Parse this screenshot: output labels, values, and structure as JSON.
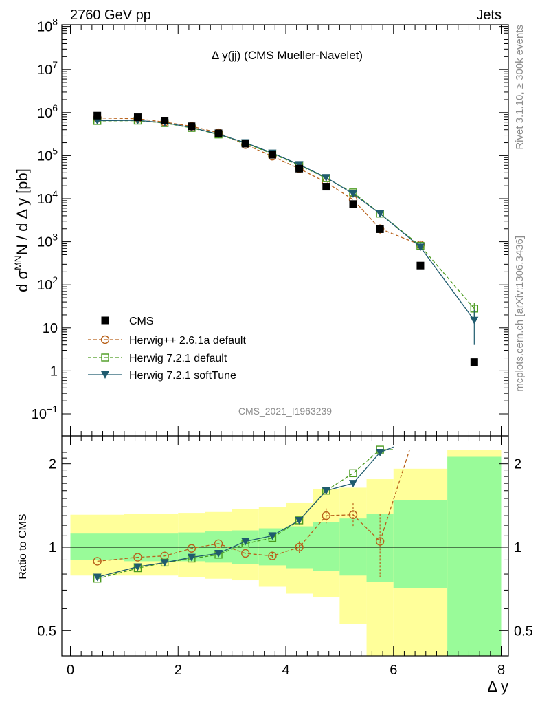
{
  "header": {
    "left": "2760 GeV pp",
    "right": "Jets"
  },
  "side_labels": {
    "rivet": "Rivet 3.1.10, ≥ 300k events",
    "mcplots": "mcplots.cern.ch [arXiv:1306.3436]"
  },
  "chart_data": [
    {
      "type": "scatter",
      "panel": "main",
      "title": "Δ y(jj) (CMS Mueller-Navelet)",
      "watermark": "CMS_2021_I1963239",
      "ylabel": "d σ^MN / d Δ y [pb]",
      "xlim": [
        -0.15,
        8.0
      ],
      "ylim_log10": [
        -0.55,
        8.0
      ],
      "log_y": true,
      "y_tick_labels": [
        "10^−1",
        "1",
        "10",
        "10^2",
        "10^3",
        "10^4",
        "10^5",
        "10^6",
        "10^7",
        "10^8"
      ],
      "legend_position": "bottom-left",
      "series": [
        {
          "name": "CMS",
          "style": "data",
          "color": "#000000",
          "x": [
            0.5,
            1.25,
            1.75,
            2.25,
            2.75,
            3.25,
            3.75,
            4.25,
            4.75,
            5.25,
            5.75,
            6.5,
            7.5
          ],
          "y": [
            850000,
            780000,
            650000,
            480000,
            330000,
            190000,
            105000,
            50000,
            19000,
            7500,
            1950,
            280,
            1.6
          ]
        },
        {
          "name": "Herwig++ 2.6.1a default",
          "style": "circle-dashed",
          "color": "#b8621b",
          "x": [
            0.5,
            1.25,
            1.75,
            2.25,
            2.75,
            3.25,
            3.75,
            4.25,
            4.75,
            5.25,
            5.75,
            6.5
          ],
          "y": [
            750000,
            720000,
            600000,
            480000,
            340000,
            180000,
            97000,
            50000,
            24000,
            9500,
            2000,
            850
          ],
          "yerr": [
            0,
            0,
            0,
            0,
            0,
            0,
            0,
            0,
            0,
            0,
            500,
            200
          ]
        },
        {
          "name": "Herwig 7.2.1 default",
          "style": "square-dashed",
          "color": "#4a9a1e",
          "x": [
            0.5,
            1.25,
            1.75,
            2.25,
            2.75,
            3.25,
            3.75,
            4.25,
            4.75,
            5.25,
            5.75,
            6.5,
            7.5
          ],
          "y": [
            640000,
            650000,
            570000,
            440000,
            310000,
            195000,
            110000,
            60000,
            30000,
            14000,
            4500,
            800,
            28
          ],
          "yerr": [
            0,
            0,
            0,
            0,
            0,
            0,
            0,
            0,
            0,
            0,
            0,
            120,
            10
          ]
        },
        {
          "name": "Herwig 7.2.1 softTune",
          "style": "triangle-solid",
          "color": "#1f5b6e",
          "x": [
            0.5,
            1.25,
            1.75,
            2.25,
            2.75,
            3.25,
            3.75,
            4.25,
            4.75,
            5.25,
            5.75,
            6.5,
            7.5
          ],
          "y": [
            650000,
            660000,
            580000,
            450000,
            315000,
            200000,
            115000,
            62000,
            31000,
            13000,
            4500,
            750,
            15
          ],
          "yerr": [
            0,
            0,
            0,
            0,
            0,
            0,
            0,
            0,
            0,
            0,
            0,
            100,
            11
          ]
        }
      ]
    },
    {
      "type": "scatter",
      "panel": "ratio",
      "ylabel": "Ratio to CMS",
      "xlabel": "Δ y",
      "xlim": [
        -0.15,
        8.0
      ],
      "ylim": [
        0.35,
        2.25
      ],
      "x_tick_labels": [
        "0",
        "2",
        "4",
        "6",
        "8"
      ],
      "y_tick_labels": [
        "0.5",
        "1",
        "2"
      ],
      "bands": [
        {
          "x0": 0.0,
          "x1": 1.0,
          "inner": [
            0.9,
            1.12
          ],
          "outer": [
            0.79,
            1.31
          ]
        },
        {
          "x0": 1.0,
          "x1": 2.0,
          "inner": [
            0.89,
            1.12
          ],
          "outer": [
            0.79,
            1.32
          ]
        },
        {
          "x0": 2.0,
          "x1": 2.5,
          "inner": [
            0.89,
            1.13
          ],
          "outer": [
            0.78,
            1.33
          ]
        },
        {
          "x0": 2.5,
          "x1": 3.0,
          "inner": [
            0.88,
            1.14
          ],
          "outer": [
            0.77,
            1.34
          ]
        },
        {
          "x0": 3.0,
          "x1": 3.5,
          "inner": [
            0.87,
            1.15
          ],
          "outer": [
            0.76,
            1.37
          ]
        },
        {
          "x0": 3.5,
          "x1": 4.0,
          "inner": [
            0.86,
            1.17
          ],
          "outer": [
            0.72,
            1.4
          ]
        },
        {
          "x0": 4.0,
          "x1": 4.5,
          "inner": [
            0.84,
            1.19
          ],
          "outer": [
            0.68,
            1.45
          ]
        },
        {
          "x0": 4.5,
          "x1": 5.0,
          "inner": [
            0.82,
            1.23
          ],
          "outer": [
            0.66,
            1.62
          ]
        },
        {
          "x0": 5.0,
          "x1": 5.5,
          "inner": [
            0.79,
            1.27
          ],
          "outer": [
            0.53,
            1.64
          ]
        },
        {
          "x0": 5.5,
          "x1": 6.0,
          "inner": [
            0.75,
            1.32
          ],
          "outer": [
            0.37,
            1.76
          ]
        },
        {
          "x0": 6.0,
          "x1": 7.0,
          "inner": [
            0.71,
            1.48
          ],
          "outer": [
            0.35,
            1.92
          ]
        },
        {
          "x0": 7.0,
          "x1": 8.0,
          "inner": [
            0.37,
            2.12
          ],
          "outer": [
            0.35,
            2.25
          ]
        }
      ],
      "series": [
        {
          "name": "Herwig++ 2.6.1a default",
          "color": "#b8621b",
          "x": [
            0.5,
            1.25,
            1.75,
            2.25,
            2.75,
            3.25,
            3.75,
            4.25,
            4.75,
            5.25,
            5.75,
            6.3
          ],
          "y": [
            0.89,
            0.92,
            0.93,
            0.99,
            1.03,
            0.95,
            0.93,
            1.0,
            1.3,
            1.31,
            1.05,
            2.25
          ],
          "yerr": [
            0,
            0,
            0,
            0,
            0,
            0,
            0.03,
            0.05,
            0.08,
            0.13,
            0.27,
            0
          ]
        },
        {
          "name": "Herwig 7.2.1 default",
          "color": "#4a9a1e",
          "x": [
            0.5,
            1.25,
            1.75,
            2.25,
            2.75,
            3.25,
            3.75,
            4.25,
            4.75,
            5.25,
            5.75,
            6.0
          ],
          "y": [
            0.77,
            0.84,
            0.88,
            0.91,
            0.94,
            1.03,
            1.08,
            1.25,
            1.6,
            1.85,
            2.25,
            2.25
          ]
        },
        {
          "name": "Herwig 7.2.1 softTune",
          "color": "#1f5b6e",
          "x": [
            0.5,
            1.25,
            1.75,
            2.25,
            2.75,
            3.25,
            3.75,
            4.25,
            4.75,
            5.25,
            5.75,
            6.0
          ],
          "y": [
            0.78,
            0.85,
            0.88,
            0.92,
            0.95,
            1.05,
            1.1,
            1.25,
            1.6,
            1.7,
            2.2,
            2.3
          ]
        }
      ]
    }
  ]
}
